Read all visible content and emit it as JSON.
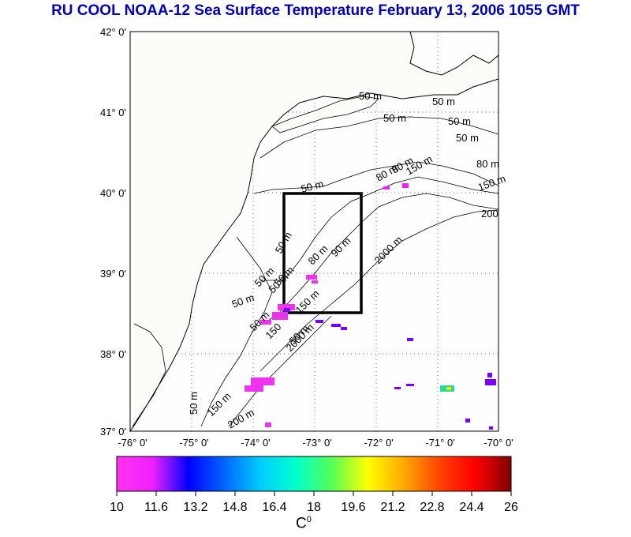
{
  "title": "RU COOL  NOAA-12 Sea Surface Temperature February 13, 2006 1055 GMT",
  "lat_labels": [
    "42° 0'",
    "41° 0'",
    "40° 0'",
    "39° 0'",
    "38° 0'",
    "37° 0'"
  ],
  "lon_labels": [
    "-76° 0'",
    "-75° 0'",
    "-74° 0'",
    "-73° 0'",
    "-72° 0'",
    "-71° 0'",
    "-70° 0'"
  ],
  "contour_labels": [
    "50 m",
    "50 m",
    "50 m",
    "50 m",
    "50 m",
    "50 m",
    "50 m",
    "50 m",
    "50 m",
    "50 m",
    "50 m",
    "50 m",
    "50 m",
    "80 m",
    "80 m",
    "80 m",
    "80 m",
    "90 m",
    "150 m",
    "150 m",
    "150 m",
    "150",
    "150 m",
    "2000 m",
    "2000 m",
    "200",
    "200 m",
    "50 m"
  ],
  "colorbar": {
    "ticks": [
      "10",
      "11.6",
      "13.2",
      "14.8",
      "16.4",
      "18",
      "19.6",
      "21.2",
      "22.8",
      "24.4",
      "26"
    ],
    "unit": "C",
    "unit_sup": "0",
    "min": 10,
    "max": 26,
    "stops": [
      "#ff33ee",
      "#ee22ff",
      "#0000ff",
      "#0066ff",
      "#00ccff",
      "#00ffcc",
      "#55ff55",
      "#ffff00",
      "#ffaa00",
      "#ff4400",
      "#ff0000",
      "#800000"
    ]
  }
}
